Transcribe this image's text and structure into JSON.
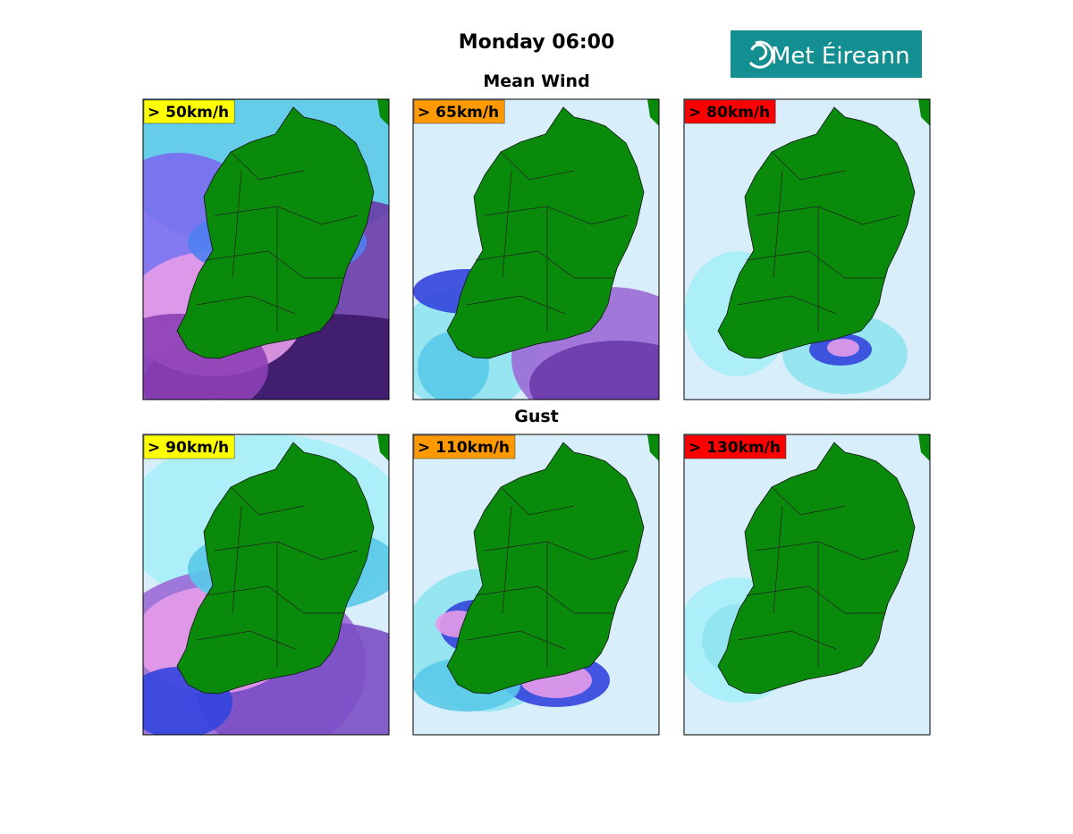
{
  "header": {
    "title": "Monday 06:00",
    "logo": "Met Éireann"
  },
  "sections": [
    {
      "title": "Mean Wind",
      "panels": [
        {
          "label": "> 50km/h",
          "color": "#ffff00"
        },
        {
          "label": "> 65km/h",
          "color": "#ff9900"
        },
        {
          "label": "> 80km/h",
          "color": "#ff0000"
        }
      ]
    },
    {
      "title": "Gust",
      "panels": [
        {
          "label": "> 90km/h",
          "color": "#ffff00"
        },
        {
          "label": "> 110km/h",
          "color": "#ff9900"
        },
        {
          "label": "> 130km/h",
          "color": "#ff0000"
        }
      ]
    }
  ]
}
